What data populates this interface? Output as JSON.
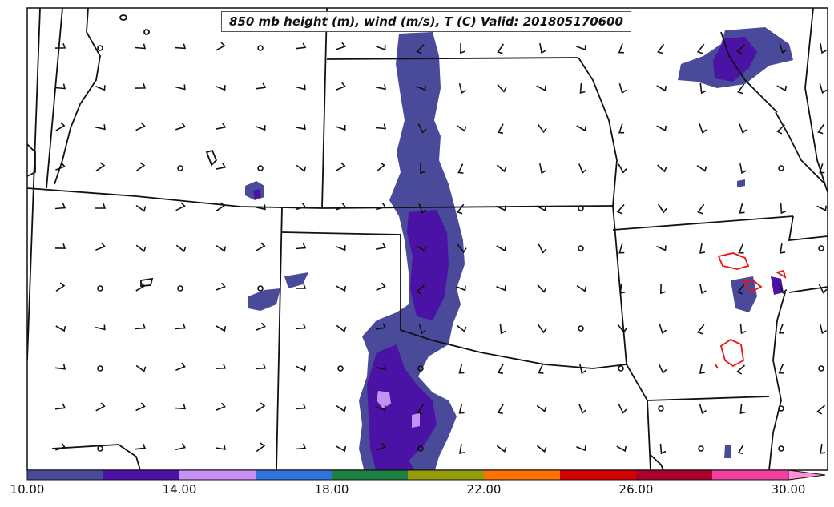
{
  "title": "850 mb height (m), wind (m/s), T (C) Valid: 201805170600",
  "colorbar": {
    "colors": [
      "#4a4a9a",
      "#4b12a6",
      "#c890f4",
      "#2f73dc",
      "#1c8040",
      "#949c0a",
      "#ff7100",
      "#d40000",
      "#a8002a",
      "#f040a0",
      "#ff90d8"
    ],
    "ticks": [
      "10.00",
      "14.00",
      "18.00",
      "22.00",
      "26.00",
      "30.00"
    ],
    "tick_values": [
      10,
      14,
      18,
      22,
      26,
      30
    ],
    "min": 10,
    "max": 30
  },
  "contour_color": "#ee1111"
}
